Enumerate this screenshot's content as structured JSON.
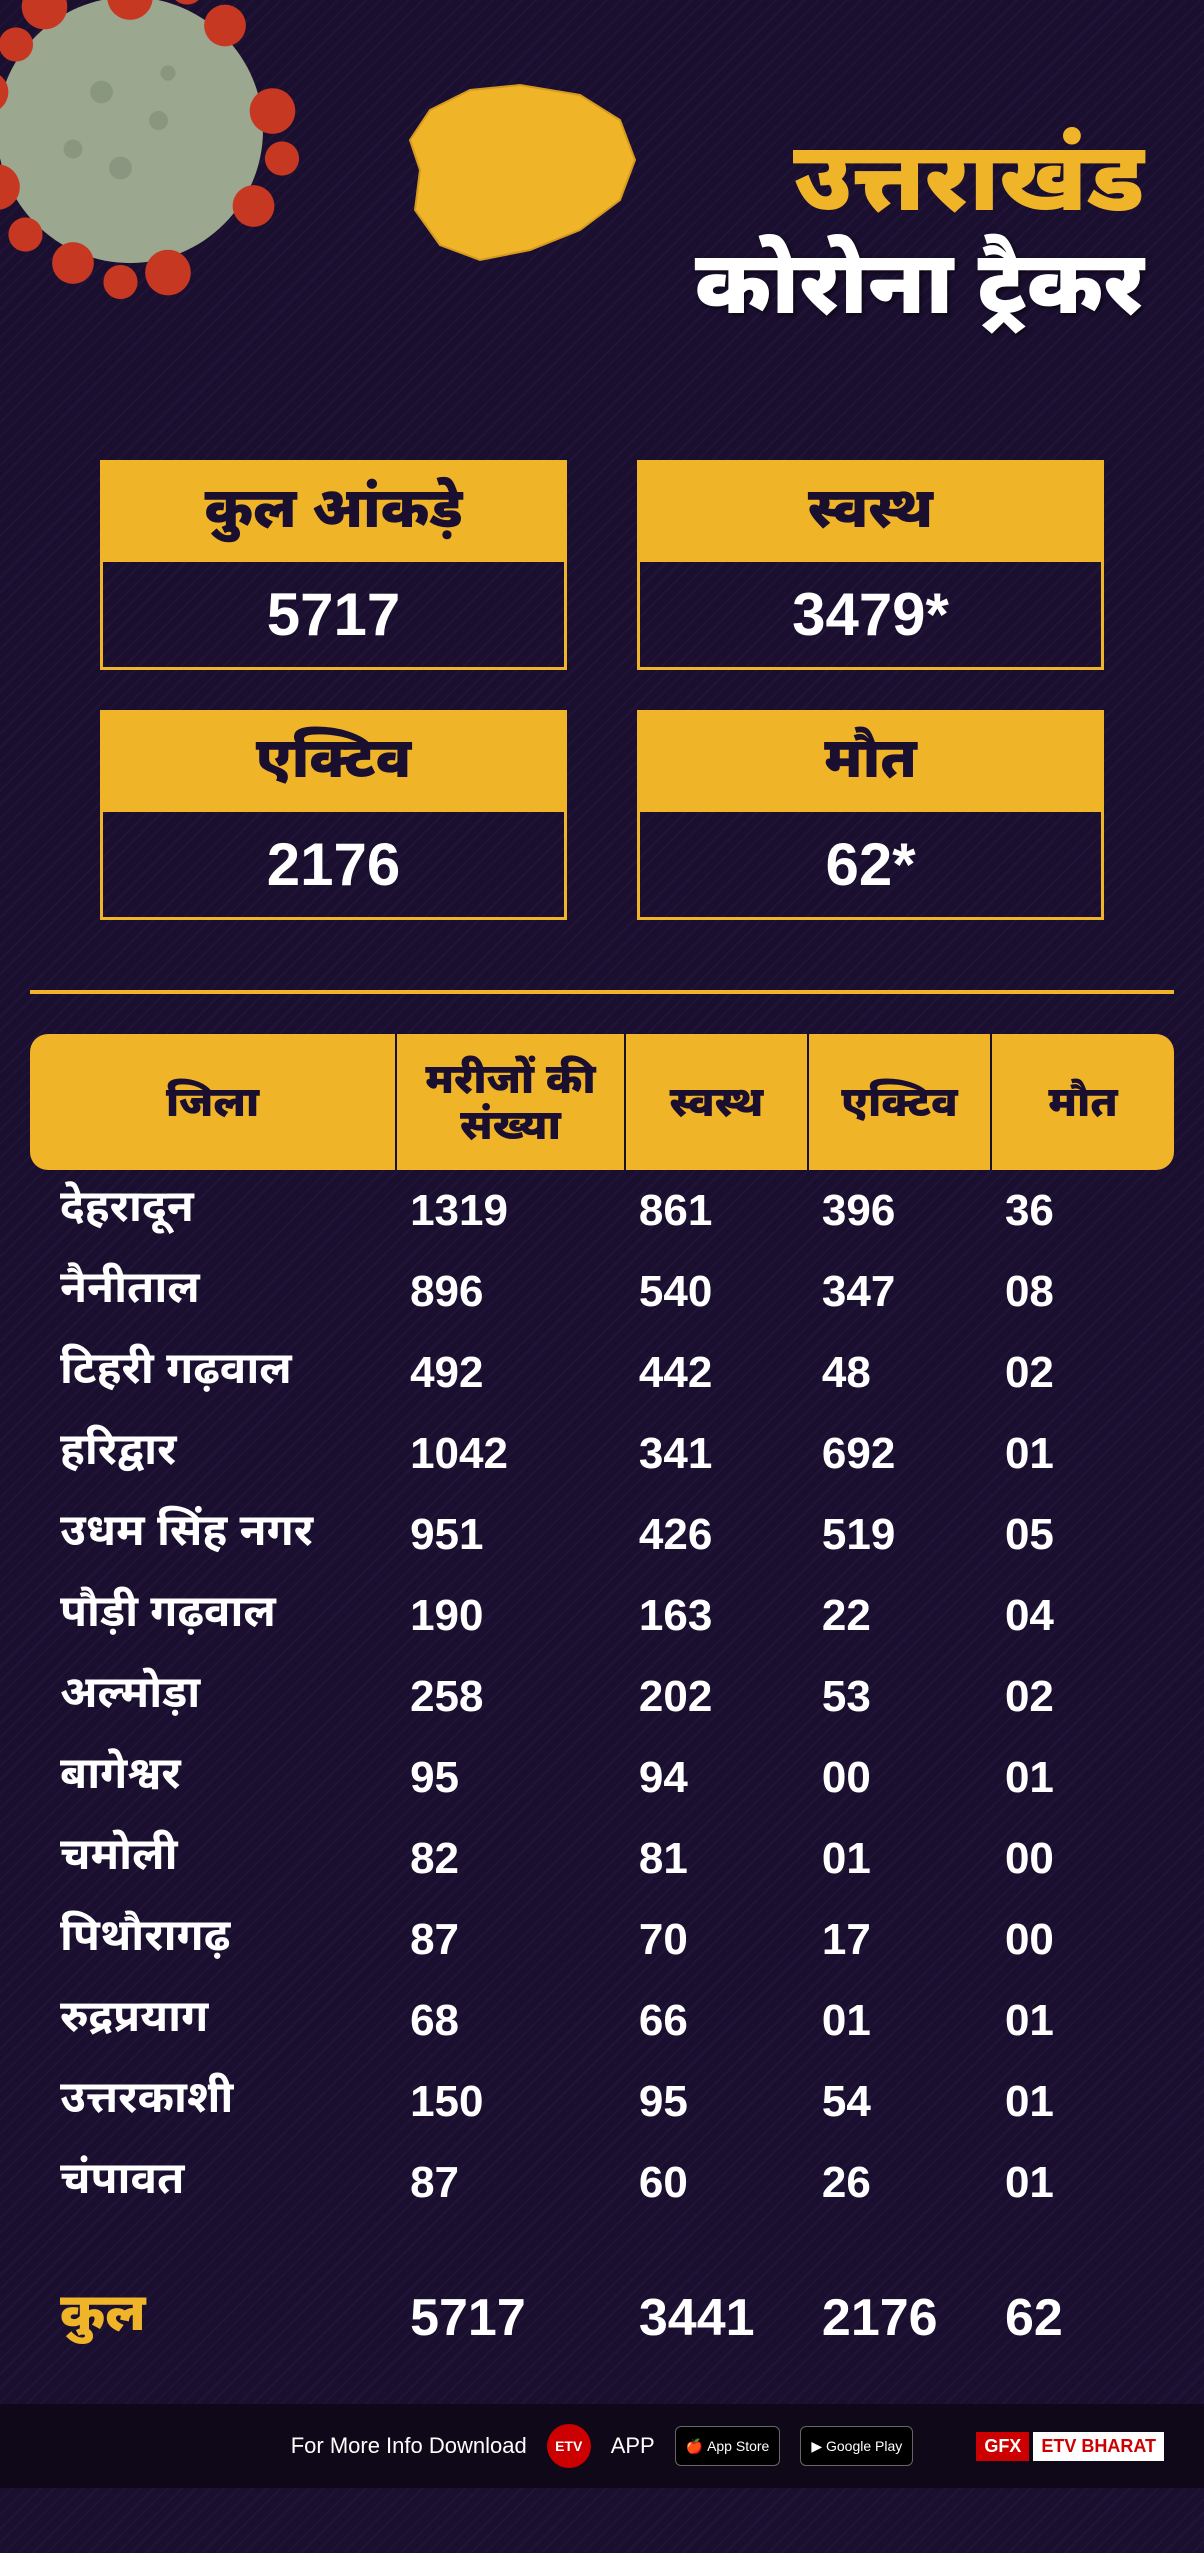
{
  "colors": {
    "accent": "#f0b429",
    "bg": "#1a0f2e",
    "text": "#ffffff",
    "virus_body": "#9ba88f",
    "virus_spike": "#c73822",
    "map_fill": "#f0b429"
  },
  "header": {
    "title_line1": "उत्तराखंड",
    "title_line2": "कोरोना ट्रैकर"
  },
  "stats": [
    {
      "label": "कुल आंकड़े",
      "value": "5717"
    },
    {
      "label": "स्वस्थ",
      "value": "3479*"
    },
    {
      "label": "एक्टिव",
      "value": "2176"
    },
    {
      "label": "मौत",
      "value": "62*"
    }
  ],
  "table": {
    "headers": {
      "district": "जिला",
      "patients": "मरीजों की संख्या",
      "healthy": "स्वस्थ",
      "active": "एक्टिव",
      "death": "मौत"
    },
    "rows": [
      {
        "district": "देहरादून",
        "patients": "1319",
        "healthy": "861",
        "active": "396",
        "death": "36"
      },
      {
        "district": "नैनीताल",
        "patients": "896",
        "healthy": "540",
        "active": "347",
        "death": "08"
      },
      {
        "district": "टिहरी गढ़वाल",
        "patients": "492",
        "healthy": "442",
        "active": "48",
        "death": "02"
      },
      {
        "district": "हरिद्वार",
        "patients": "1042",
        "healthy": "341",
        "active": "692",
        "death": "01"
      },
      {
        "district": "उधम सिंह नगर",
        "patients": "951",
        "healthy": "426",
        "active": "519",
        "death": "05"
      },
      {
        "district": "पौड़ी गढ़वाल",
        "patients": "190",
        "healthy": "163",
        "active": "22",
        "death": "04"
      },
      {
        "district": "अल्मोड़ा",
        "patients": "258",
        "healthy": "202",
        "active": "53",
        "death": "02"
      },
      {
        "district": "बागेश्वर",
        "patients": "95",
        "healthy": "94",
        "active": "00",
        "death": "01"
      },
      {
        "district": "चमोली",
        "patients": "82",
        "healthy": "81",
        "active": "01",
        "death": "00"
      },
      {
        "district": "पिथौरागढ़",
        "patients": "87",
        "healthy": "70",
        "active": "17",
        "death": "00"
      },
      {
        "district": "रुद्रप्रयाग",
        "patients": "68",
        "healthy": "66",
        "active": "01",
        "death": "01"
      },
      {
        "district": "उत्तरकाशी",
        "patients": "150",
        "healthy": "95",
        "active": "54",
        "death": "01"
      },
      {
        "district": "चंपावत",
        "patients": "87",
        "healthy": "60",
        "active": "26",
        "death": "01"
      }
    ],
    "total": {
      "label": "कुल",
      "patients": "5717",
      "healthy": "3441",
      "active": "2176",
      "death": "62"
    }
  },
  "footer": {
    "text": "For More Info Download",
    "app_label": "APP",
    "appstore": "App Store",
    "playstore": "Google Play",
    "gfx": "GFX",
    "brand": "ETV BHARAT"
  }
}
